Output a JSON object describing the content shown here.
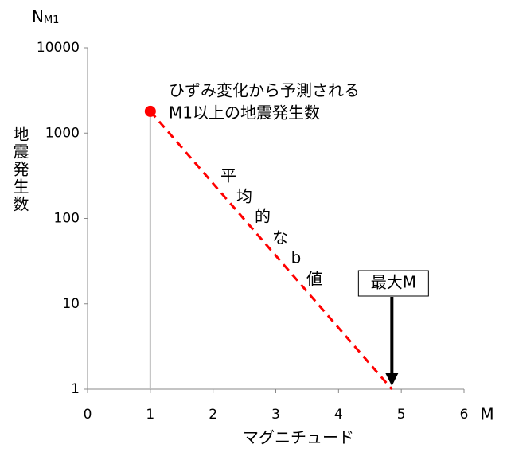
{
  "chart_data": {
    "type": "line",
    "y_unit": "N",
    "y_unit_sub": "M1",
    "y_label": "地震発生数",
    "x_label": "マグニチュード",
    "x_unit": "M",
    "xlim": [
      0,
      6
    ],
    "xticks": [
      0,
      1,
      2,
      3,
      4,
      5,
      6
    ],
    "ylim": [
      1,
      10000
    ],
    "yticks": [
      1,
      10,
      100,
      1000,
      10000
    ],
    "log_y": true,
    "series": [
      {
        "name": "平均的なb値",
        "color": "#ff0000",
        "dashed": true,
        "x": [
          1,
          4.85
        ],
        "values": [
          1800,
          1
        ]
      }
    ],
    "point": {
      "x": 1,
      "value": 1800,
      "color": "#ff0000",
      "label": [
        "ひずみ変化から予測される",
        "M1以上の地震発生数"
      ]
    },
    "line_label_chars": [
      "平",
      "均",
      "的",
      "な",
      "b",
      "値"
    ],
    "max_marker": {
      "x": 4.85,
      "label": "最大M"
    }
  }
}
